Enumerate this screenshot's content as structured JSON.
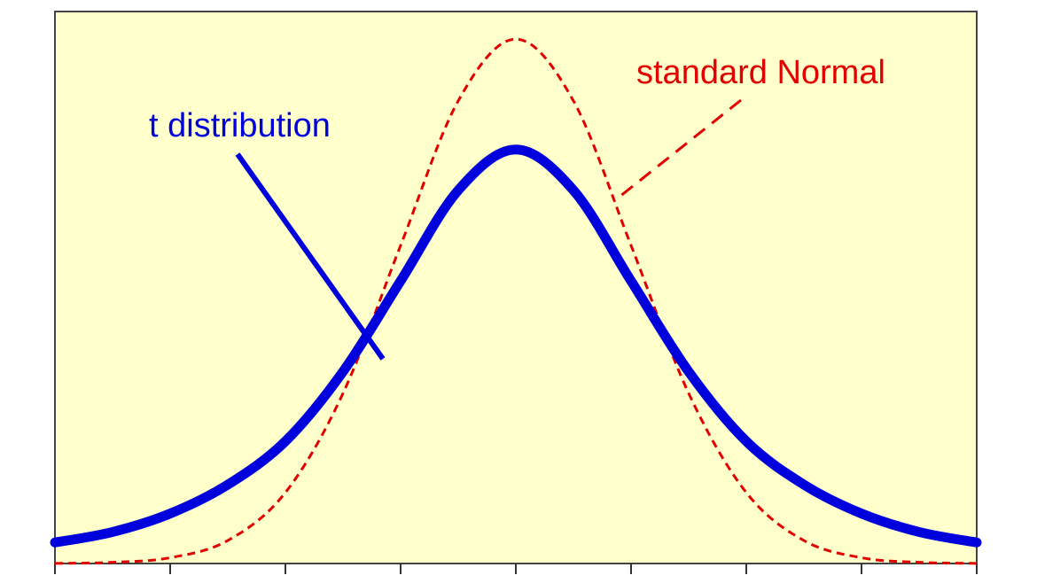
{
  "chart_data": {
    "type": "line",
    "title": "",
    "xlabel": "",
    "ylabel": "",
    "xlim": [
      -4,
      4
    ],
    "ylim": [
      0,
      0.42
    ],
    "x_ticks": [
      -4,
      -3,
      -2,
      -1,
      0,
      1,
      2,
      3,
      4
    ],
    "grid": false,
    "background_color": "#ffffcc",
    "series": [
      {
        "name": "t distribution",
        "color": "#0000dd",
        "style": "solid",
        "x": [
          -4.0,
          -3.5,
          -3.0,
          -2.5,
          -2.0,
          -1.5,
          -1.0,
          -0.5,
          0.0,
          0.5,
          1.0,
          1.5,
          2.0,
          2.5,
          3.0,
          3.5,
          4.0
        ],
        "y": [
          0.016,
          0.024,
          0.038,
          0.06,
          0.093,
          0.146,
          0.215,
          0.284,
          0.315,
          0.284,
          0.215,
          0.146,
          0.093,
          0.06,
          0.038,
          0.024,
          0.016
        ]
      },
      {
        "name": "standard Normal",
        "color": "#e00000",
        "style": "dashed",
        "x": [
          -4.0,
          -3.5,
          -3.0,
          -2.5,
          -2.0,
          -1.5,
          -1.0,
          -0.5,
          0.0,
          0.5,
          1.0,
          1.5,
          2.0,
          2.5,
          3.0,
          3.5,
          4.0
        ],
        "y": [
          0.0001,
          0.0009,
          0.0044,
          0.0175,
          0.054,
          0.1295,
          0.242,
          0.352,
          0.399,
          0.352,
          0.242,
          0.1295,
          0.054,
          0.0175,
          0.0044,
          0.0009,
          0.0001
        ]
      }
    ]
  }
}
